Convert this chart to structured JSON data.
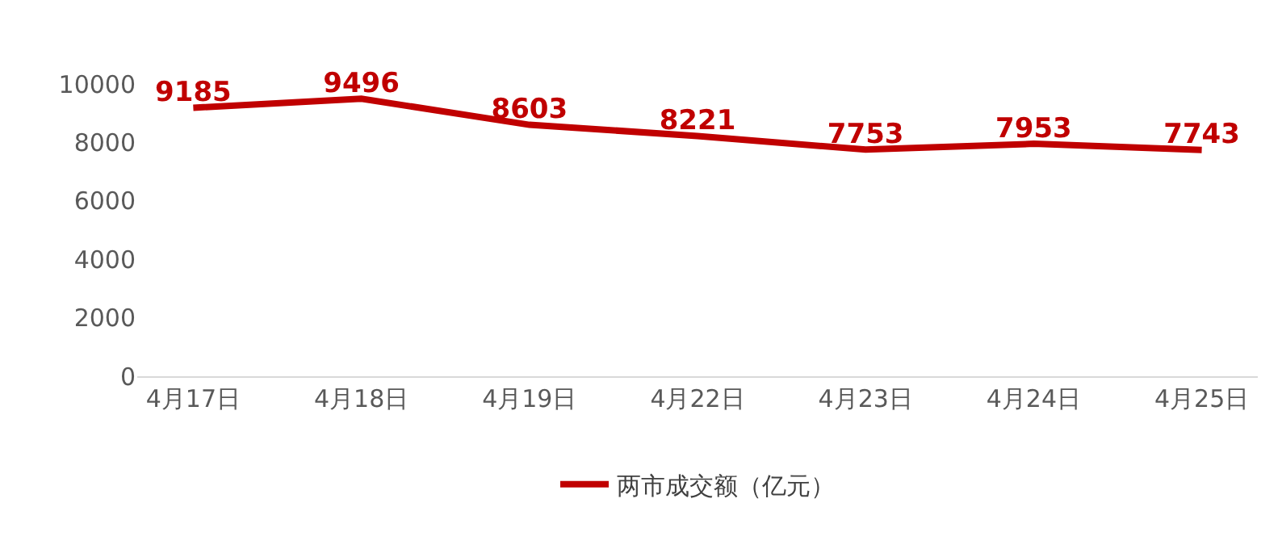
{
  "chart_data": {
    "type": "line",
    "categories": [
      "4月17日",
      "4月18日",
      "4月19日",
      "4月22日",
      "4月23日",
      "4月24日",
      "4月25日"
    ],
    "series": [
      {
        "name": "两市成交额（亿元）",
        "color": "#c00000",
        "values": [
          9185,
          9496,
          8603,
          8221,
          7753,
          7953,
          7743
        ]
      }
    ],
    "ylim": [
      0,
      10000
    ],
    "yticks": [
      0,
      2000,
      4000,
      6000,
      8000,
      10000
    ],
    "data_labels": true,
    "legend": "bottom",
    "grid": false,
    "marker": "none",
    "line_style": "solid"
  }
}
